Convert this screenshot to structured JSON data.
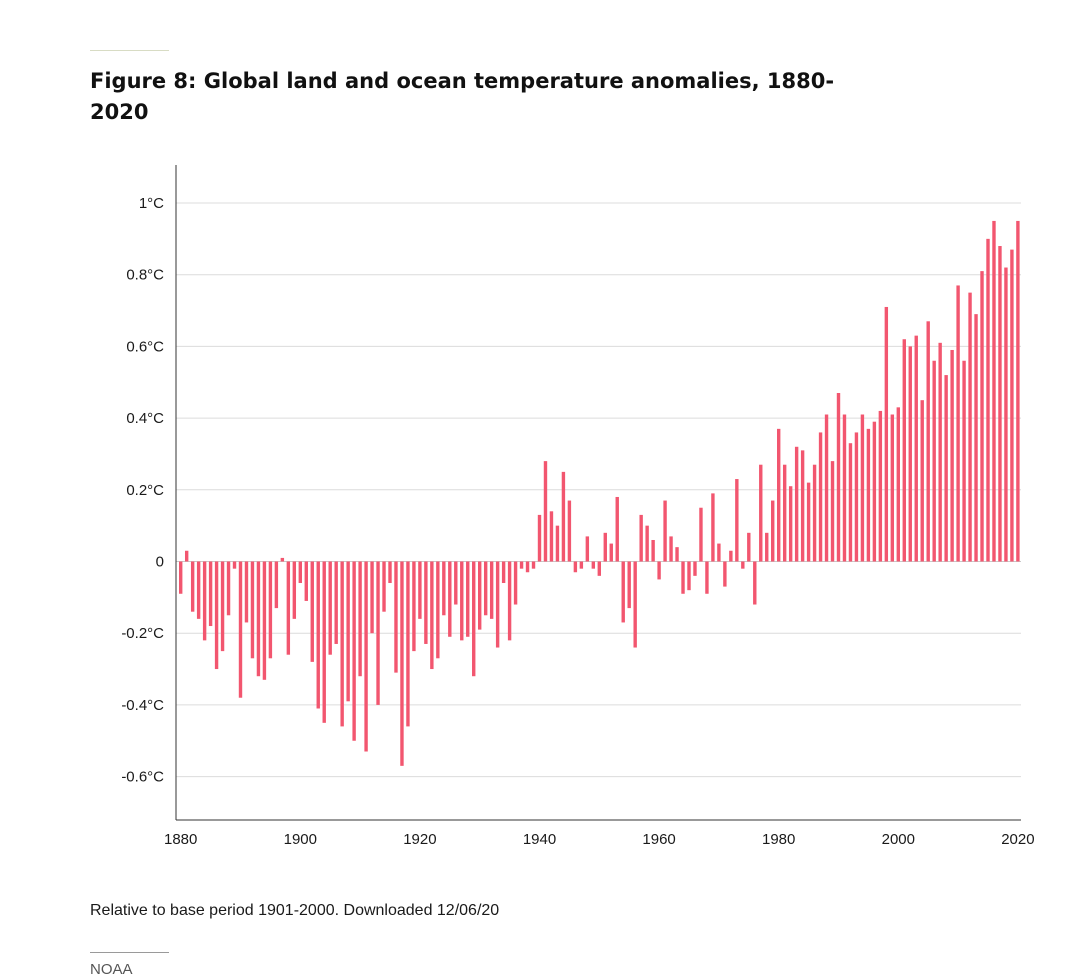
{
  "figure": {
    "title": "Figure 8: Global land and ocean temperature anomalies, 1880-2020",
    "note": "Relative to base period 1901-2000. Downloaded 12/06/20",
    "source": "NOAA"
  },
  "chart_data": {
    "type": "bar",
    "title": "Figure 8: Global land and ocean temperature anomalies, 1880-2020",
    "xlabel": "",
    "ylabel": "",
    "bar_color": "#f2566f",
    "grid": true,
    "legend": "none",
    "ylim": [
      -0.7,
      1.1
    ],
    "xlim": [
      1880,
      2020
    ],
    "y_ticks": [
      {
        "value": 1.0,
        "label": "1°C"
      },
      {
        "value": 0.8,
        "label": "0.8°C"
      },
      {
        "value": 0.6,
        "label": "0.6°C"
      },
      {
        "value": 0.4,
        "label": "0.4°C"
      },
      {
        "value": 0.2,
        "label": "0.2°C"
      },
      {
        "value": 0.0,
        "label": "0"
      },
      {
        "value": -0.2,
        "label": "-0.2°C"
      },
      {
        "value": -0.4,
        "label": "-0.4°C"
      },
      {
        "value": -0.6,
        "label": "-0.6°C"
      }
    ],
    "x_ticks": [
      {
        "value": 1880,
        "label": "1880"
      },
      {
        "value": 1900,
        "label": "1900"
      },
      {
        "value": 1920,
        "label": "1920"
      },
      {
        "value": 1940,
        "label": "1940"
      },
      {
        "value": 1960,
        "label": "1960"
      },
      {
        "value": 1980,
        "label": "1980"
      },
      {
        "value": 2000,
        "label": "2000"
      },
      {
        "value": 2020,
        "label": "2020"
      }
    ],
    "categories": [
      1880,
      1881,
      1882,
      1883,
      1884,
      1885,
      1886,
      1887,
      1888,
      1889,
      1890,
      1891,
      1892,
      1893,
      1894,
      1895,
      1896,
      1897,
      1898,
      1899,
      1900,
      1901,
      1902,
      1903,
      1904,
      1905,
      1906,
      1907,
      1908,
      1909,
      1910,
      1911,
      1912,
      1913,
      1914,
      1915,
      1916,
      1917,
      1918,
      1919,
      1920,
      1921,
      1922,
      1923,
      1924,
      1925,
      1926,
      1927,
      1928,
      1929,
      1930,
      1931,
      1932,
      1933,
      1934,
      1935,
      1936,
      1937,
      1938,
      1939,
      1940,
      1941,
      1942,
      1943,
      1944,
      1945,
      1946,
      1947,
      1948,
      1949,
      1950,
      1951,
      1952,
      1953,
      1954,
      1955,
      1956,
      1957,
      1958,
      1959,
      1960,
      1961,
      1962,
      1963,
      1964,
      1965,
      1966,
      1967,
      1968,
      1969,
      1970,
      1971,
      1972,
      1973,
      1974,
      1975,
      1976,
      1977,
      1978,
      1979,
      1980,
      1981,
      1982,
      1983,
      1984,
      1985,
      1986,
      1987,
      1988,
      1989,
      1990,
      1991,
      1992,
      1993,
      1994,
      1995,
      1996,
      1997,
      1998,
      1999,
      2000,
      2001,
      2002,
      2003,
      2004,
      2005,
      2006,
      2007,
      2008,
      2009,
      2010,
      2011,
      2012,
      2013,
      2014,
      2015,
      2016,
      2017,
      2018,
      2019,
      2020
    ],
    "values": [
      -0.09,
      0.03,
      -0.14,
      -0.16,
      -0.22,
      -0.18,
      -0.3,
      -0.25,
      -0.15,
      -0.02,
      -0.38,
      -0.17,
      -0.27,
      -0.32,
      -0.33,
      -0.27,
      -0.13,
      0.01,
      -0.26,
      -0.16,
      -0.06,
      -0.11,
      -0.28,
      -0.41,
      -0.45,
      -0.26,
      -0.23,
      -0.46,
      -0.39,
      -0.5,
      -0.32,
      -0.53,
      -0.2,
      -0.4,
      -0.14,
      -0.06,
      -0.31,
      -0.57,
      -0.46,
      -0.25,
      -0.16,
      -0.23,
      -0.3,
      -0.27,
      -0.15,
      -0.21,
      -0.12,
      -0.22,
      -0.21,
      -0.32,
      -0.19,
      -0.15,
      -0.16,
      -0.24,
      -0.06,
      -0.22,
      -0.12,
      -0.02,
      -0.03,
      -0.02,
      0.13,
      0.28,
      0.14,
      0.1,
      0.25,
      0.17,
      -0.03,
      -0.02,
      0.07,
      -0.02,
      -0.04,
      0.08,
      0.05,
      0.18,
      -0.17,
      -0.13,
      -0.24,
      0.13,
      0.1,
      0.06,
      -0.05,
      0.17,
      0.07,
      0.04,
      -0.09,
      -0.08,
      -0.04,
      0.15,
      -0.09,
      0.19,
      0.05,
      -0.07,
      0.03,
      0.23,
      -0.02,
      0.08,
      -0.12,
      0.27,
      0.08,
      0.17,
      0.37,
      0.27,
      0.21,
      0.32,
      0.31,
      0.22,
      0.27,
      0.36,
      0.41,
      0.28,
      0.47,
      0.41,
      0.33,
      0.36,
      0.41,
      0.37,
      0.39,
      0.42,
      0.71,
      0.41,
      0.43,
      0.62,
      0.6,
      0.63,
      0.45,
      0.67,
      0.56,
      0.61,
      0.52,
      0.59,
      0.77,
      0.56,
      0.75,
      0.69,
      0.81,
      0.9,
      0.95,
      0.88,
      0.82,
      0.87,
      0.95
    ]
  }
}
